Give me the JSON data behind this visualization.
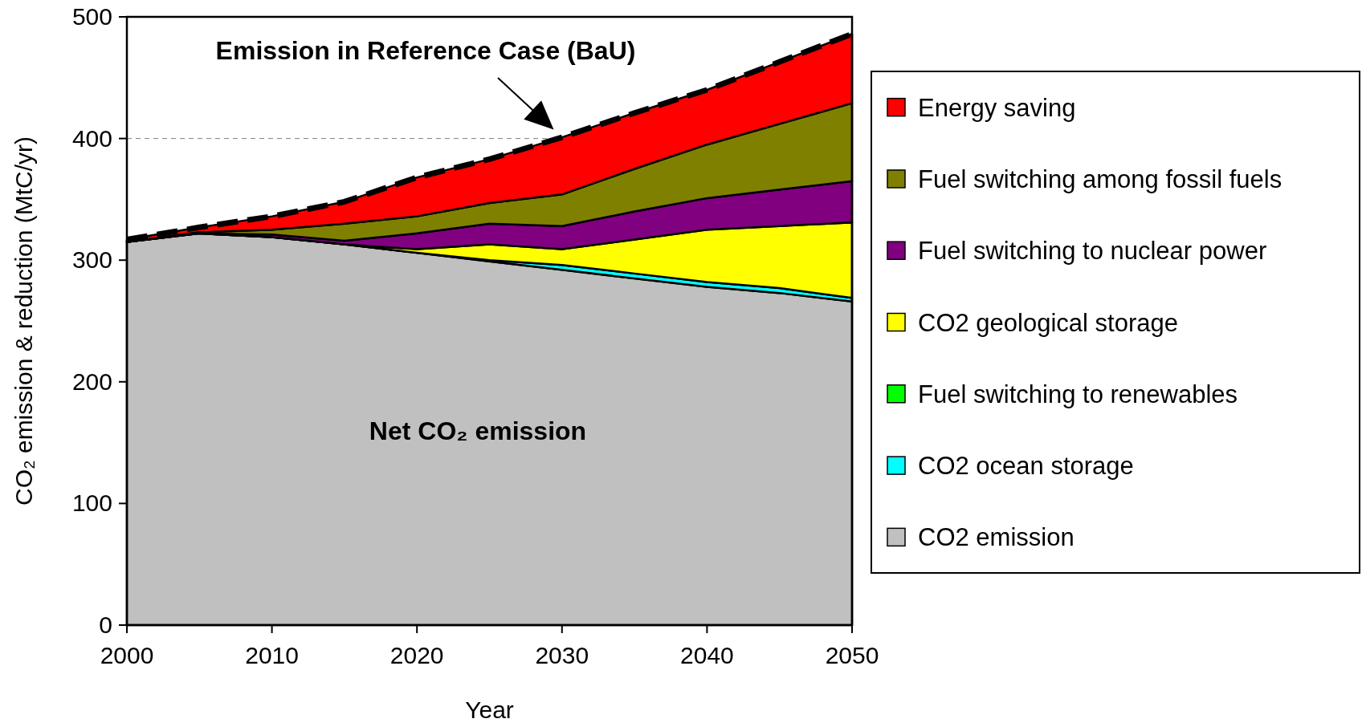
{
  "chart_data": {
    "type": "area",
    "stacked": true,
    "xlabel": "Year",
    "ylabel": "CO₂ emission & reduction (MtC/yr)",
    "x": [
      2000,
      2005,
      2010,
      2015,
      2020,
      2025,
      2030,
      2035,
      2040,
      2045,
      2050
    ],
    "xlim": [
      2000,
      2050
    ],
    "xticks": [
      2000,
      2010,
      2020,
      2030,
      2040,
      2050
    ],
    "ylim": [
      0,
      500
    ],
    "yticks": [
      0,
      100,
      200,
      300,
      400,
      500
    ],
    "legend": "right",
    "grid": false,
    "series": [
      {
        "name": "CO2 emission",
        "color": "#c0c0c0",
        "values": [
          315,
          322,
          319,
          313,
          306,
          299,
          292,
          285,
          278,
          273,
          266
        ]
      },
      {
        "name": "CO2 ocean storage",
        "color": "#00ffff",
        "values": [
          0,
          0,
          0,
          0,
          0,
          1,
          4,
          4,
          4,
          4,
          3
        ]
      },
      {
        "name": "Fuel switching to renewables",
        "color": "#00ff00",
        "values": [
          null,
          null,
          null,
          null,
          null,
          null,
          null,
          null,
          null,
          null,
          null
        ]
      },
      {
        "name": "CO2 geological storage",
        "color": "#ffff00",
        "values": [
          0,
          0,
          0,
          0,
          3,
          13,
          13,
          28,
          43,
          51,
          62
        ]
      },
      {
        "name": "Fuel switching to nuclear power",
        "color": "#800080",
        "values": [
          0,
          0,
          2,
          3,
          13,
          17,
          19,
          23,
          26,
          30,
          34
        ]
      },
      {
        "name": "Fuel switching among fossil fuels",
        "color": "#808000",
        "values": [
          0,
          1,
          4,
          14,
          14,
          17,
          26,
          35,
          44,
          54,
          64
        ]
      },
      {
        "name": "Energy saving",
        "color": "#ff0000",
        "line_style": "dashed",
        "values": [
          2,
          4,
          11,
          18,
          32,
          36,
          47,
          46,
          45,
          51,
          57
        ]
      }
    ],
    "ref_lines": [
      {
        "axis": "y",
        "value": 400,
        "color": "#808080",
        "line_style": "dashed"
      }
    ],
    "annotations": [
      {
        "text": "Emission in Reference Case (BaU)",
        "x": 2030,
        "y": 401
      },
      "Net CO₂ emission"
    ]
  }
}
